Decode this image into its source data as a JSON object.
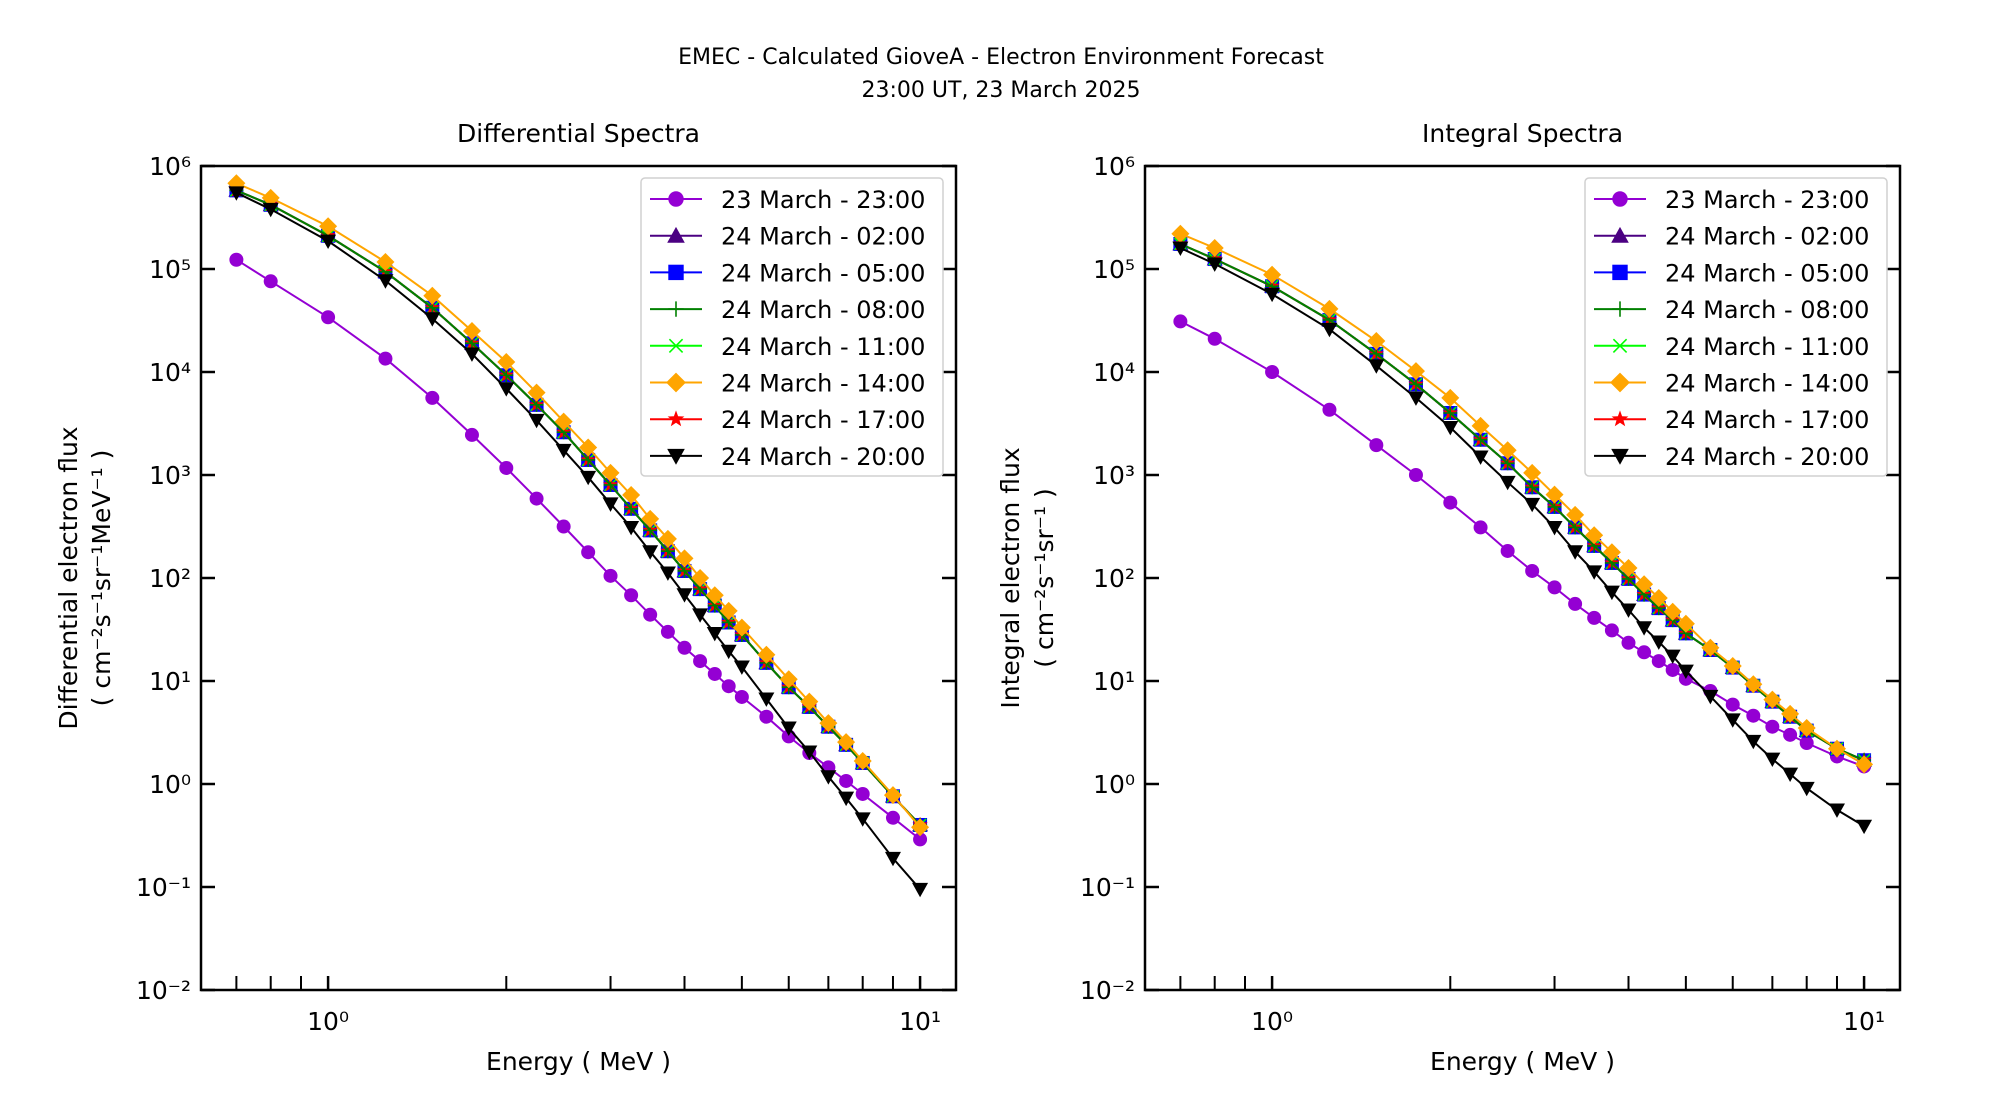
{
  "title": {
    "line1": "EMEC - Calculated GioveA - Electron Environment Forecast",
    "line2": "23:00 UT, 23 March 2025"
  },
  "chart_data": [
    {
      "type": "line",
      "id": "differential",
      "title": "Differential Spectra",
      "xlabel": "Energy ( MeV )",
      "ylabel_line1": "Differential electron flux",
      "ylabel_line2": "( cm⁻²s⁻¹sr⁻¹MeV⁻¹ )",
      "xscale": "log",
      "yscale": "log",
      "xlim": [
        0.61,
        11.5
      ],
      "ylim": [
        0.01,
        1000000
      ],
      "x_major_ticks": [
        1,
        10
      ],
      "x_major_tick_labels": [
        "10⁰",
        "10¹"
      ],
      "x_minor_ticks": [
        0.7,
        0.8,
        0.9,
        2,
        3,
        4,
        5,
        6,
        7,
        8,
        9
      ],
      "y_ticks": [
        1000000,
        100000,
        10000,
        1000,
        100,
        10,
        1,
        0.1,
        0.01
      ],
      "y_tick_labels": [
        "10⁶",
        "10⁵",
        "10⁴",
        "10³",
        "10²",
        "10¹",
        "10⁰",
        "10⁻¹",
        "10⁻²"
      ],
      "grid": false,
      "legend_position": "top-right",
      "x": [
        0.7,
        0.8,
        1.0,
        1.25,
        1.5,
        1.75,
        2.0,
        2.25,
        2.5,
        2.75,
        3.0,
        3.25,
        3.5,
        3.75,
        4.0,
        4.25,
        4.5,
        4.75,
        5.0,
        5.5,
        6.0,
        6.5,
        7.0,
        7.5,
        8.0,
        9.0,
        10.0
      ],
      "series": [
        {
          "name": "23 March - 23:00",
          "color": "#9400d3",
          "marker": "circle",
          "values": [
            123000,
            76000,
            34000,
            13500,
            5600,
            2450,
            1170,
            590,
            316,
            178,
            105,
            68,
            44,
            30,
            21,
            15.6,
            11.7,
            8.9,
            7.0,
            4.5,
            2.9,
            2.0,
            1.45,
            1.07,
            0.8,
            0.47,
            0.29
          ]
        },
        {
          "name": "24 March - 02:00",
          "color": "#4b0082",
          "marker": "triangle-up",
          "values": [
            580000,
            420000,
            210000,
            94000,
            42000,
            19000,
            9300,
            4800,
            2600,
            1400,
            800,
            470,
            290,
            182,
            117,
            78,
            54,
            37,
            28,
            15,
            8.7,
            5.6,
            3.6,
            2.4,
            1.6,
            0.76,
            0.4
          ]
        },
        {
          "name": "24 March - 05:00",
          "color": "#0000ff",
          "marker": "square",
          "values": [
            580000,
            420000,
            210000,
            94000,
            42000,
            19000,
            9300,
            4800,
            2600,
            1400,
            800,
            470,
            290,
            182,
            117,
            78,
            54,
            37,
            28,
            15,
            8.7,
            5.6,
            3.6,
            2.4,
            1.6,
            0.76,
            0.4
          ]
        },
        {
          "name": "24 March - 08:00",
          "color": "#008000",
          "marker": "plus",
          "values": [
            580000,
            420000,
            210000,
            94000,
            42000,
            19000,
            9300,
            4800,
            2600,
            1400,
            800,
            470,
            290,
            182,
            117,
            78,
            54,
            37,
            28,
            15,
            8.7,
            5.6,
            3.6,
            2.4,
            1.6,
            0.76,
            0.4
          ]
        },
        {
          "name": "24 March - 11:00",
          "color": "#00ff00",
          "marker": "x",
          "values": [
            580000,
            420000,
            210000,
            94000,
            42000,
            19000,
            9300,
            4800,
            2600,
            1400,
            800,
            470,
            290,
            182,
            117,
            78,
            54,
            37,
            28,
            15,
            8.7,
            5.6,
            3.6,
            2.4,
            1.6,
            0.76,
            0.4
          ]
        },
        {
          "name": "24 March - 14:00",
          "color": "#ffa500",
          "marker": "diamond",
          "values": [
            680000,
            490000,
            260000,
            117000,
            55000,
            25000,
            12500,
            6300,
            3300,
            1850,
            1050,
            640,
            375,
            240,
            155,
            100,
            68,
            48,
            33,
            18,
            10.4,
            6.3,
            3.9,
            2.55,
            1.67,
            0.78,
            0.38
          ]
        },
        {
          "name": "24 March - 17:00",
          "color": "#ff0000",
          "marker": "star",
          "values": [
            580000,
            420000,
            210000,
            94000,
            42000,
            19000,
            9300,
            4800,
            2600,
            1400,
            800,
            470,
            290,
            182,
            117,
            78,
            54,
            37,
            28,
            15,
            8.7,
            5.6,
            3.6,
            2.4,
            1.6,
            0.76,
            0.4
          ]
        },
        {
          "name": "24 March - 20:00",
          "color": "#000000",
          "marker": "triangle-down",
          "values": [
            550000,
            380000,
            187000,
            77000,
            33000,
            15000,
            6900,
            3400,
            1740,
            950,
            525,
            310,
            180,
            112,
            69,
            44,
            29,
            19.5,
            13.7,
            6.7,
            3.5,
            2.05,
            1.18,
            0.73,
            0.46,
            0.19,
            0.095
          ]
        }
      ]
    },
    {
      "type": "line",
      "id": "integral",
      "title": "Integral Spectra",
      "xlabel": "Energy ( MeV )",
      "ylabel_line1": "Integral electron flux",
      "ylabel_line2": "( cm⁻²s⁻¹sr⁻¹ )",
      "xscale": "log",
      "yscale": "log",
      "xlim": [
        0.61,
        11.5
      ],
      "ylim": [
        0.01,
        1000000
      ],
      "x_major_ticks": [
        1,
        10
      ],
      "x_major_tick_labels": [
        "10⁰",
        "10¹"
      ],
      "x_minor_ticks": [
        0.7,
        0.8,
        0.9,
        2,
        3,
        4,
        5,
        6,
        7,
        8,
        9
      ],
      "y_ticks": [
        1000000,
        100000,
        10000,
        1000,
        100,
        10,
        1,
        0.1,
        0.01
      ],
      "y_tick_labels": [
        "10⁶",
        "10⁵",
        "10⁴",
        "10³",
        "10²",
        "10¹",
        "10⁰",
        "10⁻¹",
        "10⁻²"
      ],
      "grid": false,
      "legend_position": "top-right",
      "x": [
        0.7,
        0.8,
        1.0,
        1.25,
        1.5,
        1.75,
        2.0,
        2.25,
        2.5,
        2.75,
        3.0,
        3.25,
        3.5,
        3.75,
        4.0,
        4.25,
        4.5,
        4.75,
        5.0,
        5.5,
        6.0,
        6.5,
        7.0,
        7.5,
        8.0,
        9.0,
        10.0
      ],
      "series": [
        {
          "name": "23 March - 23:00",
          "color": "#9400d3",
          "marker": "circle",
          "values": [
            31000,
            21000,
            10000,
            4300,
            1950,
            1000,
            540,
            310,
            183,
            117,
            81,
            56,
            41,
            31,
            23.5,
            19,
            15.6,
            12.8,
            10.5,
            8.0,
            5.9,
            4.6,
            3.6,
            3.0,
            2.5,
            1.85,
            1.48
          ]
        },
        {
          "name": "24 March - 02:00",
          "color": "#4b0082",
          "marker": "triangle-up",
          "values": [
            175000,
            125000,
            68000,
            32000,
            15000,
            7600,
            4000,
            2200,
            1300,
            760,
            490,
            310,
            205,
            140,
            98,
            69,
            51,
            39,
            29,
            20,
            13.5,
            9.0,
            6.3,
            4.5,
            3.3,
            2.2,
            1.7
          ]
        },
        {
          "name": "24 March - 05:00",
          "color": "#0000ff",
          "marker": "square",
          "values": [
            175000,
            125000,
            68000,
            32000,
            15000,
            7600,
            4000,
            2200,
            1300,
            760,
            490,
            310,
            205,
            140,
            98,
            69,
            51,
            39,
            29,
            20,
            13.5,
            9.0,
            6.3,
            4.5,
            3.3,
            2.2,
            1.7
          ]
        },
        {
          "name": "24 March - 08:00",
          "color": "#008000",
          "marker": "plus",
          "values": [
            175000,
            125000,
            68000,
            32000,
            15000,
            7600,
            4000,
            2200,
            1300,
            760,
            490,
            310,
            205,
            140,
            98,
            69,
            51,
            39,
            29,
            20,
            13.5,
            9.0,
            6.3,
            4.5,
            3.3,
            2.2,
            1.7
          ]
        },
        {
          "name": "24 March - 11:00",
          "color": "#00ff00",
          "marker": "x",
          "values": [
            175000,
            125000,
            68000,
            32000,
            15000,
            7600,
            4000,
            2200,
            1300,
            760,
            490,
            310,
            205,
            140,
            98,
            69,
            51,
            39,
            29,
            20,
            13.5,
            9.0,
            6.3,
            4.5,
            3.3,
            2.2,
            1.7
          ]
        },
        {
          "name": "24 March - 14:00",
          "color": "#ffa500",
          "marker": "diamond",
          "values": [
            220000,
            160000,
            88000,
            41000,
            20000,
            10200,
            5600,
            3000,
            1740,
            1050,
            645,
            410,
            260,
            178,
            125,
            87,
            64,
            47,
            36,
            21,
            14,
            9.3,
            6.6,
            4.8,
            3.5,
            2.2,
            1.55
          ]
        },
        {
          "name": "24 March - 17:00",
          "color": "#ff0000",
          "marker": "star",
          "values": [
            175000,
            125000,
            68000,
            32000,
            15000,
            7600,
            4000,
            2200,
            1300,
            760,
            490,
            310,
            205,
            140,
            98,
            69,
            51,
            39,
            29,
            20,
            13.5,
            9.0,
            6.3,
            4.5,
            3.3,
            2.2,
            1.7
          ]
        },
        {
          "name": "24 March - 20:00",
          "color": "#000000",
          "marker": "triangle-down",
          "values": [
            160000,
            112000,
            57000,
            26000,
            11500,
            5600,
            2900,
            1500,
            850,
            520,
            310,
            180,
            115,
            73,
            49,
            33,
            24,
            17.5,
            12.5,
            7.1,
            4.2,
            2.6,
            1.75,
            1.25,
            0.91,
            0.56,
            0.39
          ]
        }
      ]
    }
  ]
}
